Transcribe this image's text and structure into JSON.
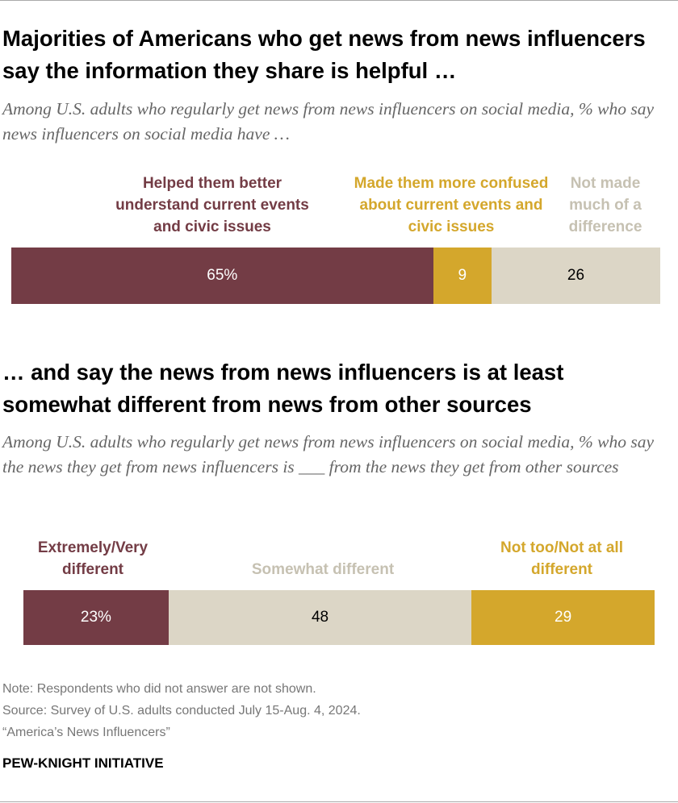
{
  "chart_data": [
    {
      "type": "bar",
      "stacked": true,
      "orientation": "horizontal",
      "title": "Majorities of Americans who get news from news influencers say the information they share is helpful …",
      "subtitle": "Among U.S. adults who regularly get news from news influencers on social media, % who say news influencers on social media have …",
      "series": [
        {
          "name": "Helped them better understand current events and civic issues",
          "color": "#733c45",
          "values": [
            65
          ],
          "value_labels": [
            "65%"
          ]
        },
        {
          "name": "Made them more confused about current events and civic issues",
          "color": "#d4a72c",
          "values": [
            9
          ],
          "value_labels": [
            "9"
          ]
        },
        {
          "name": "Not made much of a difference",
          "color": "#dcd6c6",
          "values": [
            26
          ],
          "value_labels": [
            "26"
          ]
        }
      ]
    },
    {
      "type": "bar",
      "stacked": true,
      "orientation": "horizontal",
      "title": "… and say the news from news influencers is at least somewhat different from news from other sources",
      "subtitle": "Among U.S. adults who regularly get news from news influencers on social media, % who say the news they get from news influencers is ___ from the news they get from other sources",
      "series": [
        {
          "name": "Extremely/Very different",
          "color": "#733c45",
          "values": [
            23
          ],
          "value_labels": [
            "23%"
          ]
        },
        {
          "name": "Somewhat different",
          "color": "#dcd6c6",
          "values": [
            48
          ],
          "value_labels": [
            "48"
          ]
        },
        {
          "name": "Not too/Not at all different",
          "color": "#d4a72c",
          "values": [
            29
          ],
          "value_labels": [
            "29"
          ]
        }
      ]
    }
  ],
  "footer": {
    "note": "Note: Respondents who did not answer are not shown.",
    "source": "Source: Survey of U.S. adults conducted July 15-Aug. 4, 2024.",
    "report": "“America’s News Influencers”",
    "brand": "PEW-KNIGHT INITIATIVE"
  }
}
